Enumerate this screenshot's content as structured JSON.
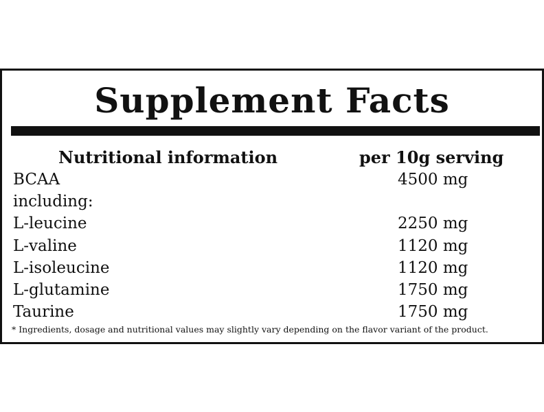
{
  "header": {
    "title": "Supplement Facts"
  },
  "table": {
    "columns": [
      "Nutritional information",
      "per 10g serving"
    ],
    "rows": [
      [
        "BCAA",
        "4500 mg"
      ],
      [
        "including:"
      ],
      [
        "L-leucine",
        "2250 mg"
      ],
      [
        "L-valine",
        "1120 mg"
      ],
      [
        "L-isoleucine",
        "1120 mg"
      ],
      [
        "L-glutamine",
        "1750 mg"
      ],
      [
        "Taurine",
        "1750 mg"
      ]
    ]
  },
  "footnote": "* Ingredients, dosage and nutritional values may slightly vary depending on the flavor variant of the product."
}
